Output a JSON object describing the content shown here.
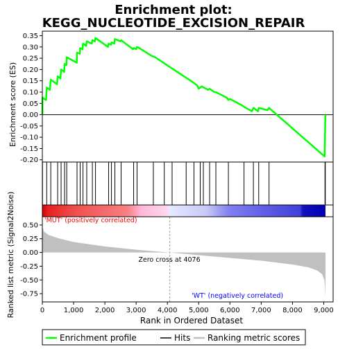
{
  "title_lines": [
    "Enrichment plot:",
    "KEGG_NUCLEOTIDE_EXCISION_REPAIR"
  ],
  "colors": {
    "es_line": "#00ff00",
    "hits": "#000000",
    "metric_fill": "#c0c0c0",
    "zero_cross_line": "#a0a0a0",
    "pos_label": "#ff0000",
    "neg_label": "#0000ff",
    "frame": "#000000",
    "legend_metric": "#c0c0c0"
  },
  "chart_data": [
    {
      "id": "es",
      "type": "line",
      "ylabel": "Enrichment score (ES)",
      "xlim": [
        0,
        9300
      ],
      "ylim": [
        -0.21,
        0.37
      ],
      "yticks": [
        0.35,
        0.3,
        0.25,
        0.2,
        0.15,
        0.1,
        0.05,
        0.0,
        -0.05,
        -0.1,
        -0.15,
        -0.2
      ],
      "ytick_labels": [
        "0.35",
        "0.30",
        "0.25",
        "0.20",
        "0.15",
        "0.10",
        "0.05",
        "0.00",
        "-0.05",
        "-0.10",
        "-0.15",
        "-0.20"
      ],
      "series": [
        {
          "name": "Enrichment profile",
          "points": [
            [
              0,
              0.0
            ],
            [
              5,
              0.075
            ],
            [
              120,
              0.065
            ],
            [
              140,
              0.12
            ],
            [
              240,
              0.11
            ],
            [
              270,
              0.155
            ],
            [
              470,
              0.135
            ],
            [
              490,
              0.17
            ],
            [
              580,
              0.16
            ],
            [
              600,
              0.2
            ],
            [
              700,
              0.19
            ],
            [
              710,
              0.225
            ],
            [
              770,
              0.22
            ],
            [
              780,
              0.255
            ],
            [
              1100,
              0.23
            ],
            [
              1110,
              0.275
            ],
            [
              1200,
              0.27
            ],
            [
              1210,
              0.295
            ],
            [
              1290,
              0.29
            ],
            [
              1300,
              0.315
            ],
            [
              1400,
              0.305
            ],
            [
              1420,
              0.325
            ],
            [
              1580,
              0.315
            ],
            [
              1600,
              0.33
            ],
            [
              1680,
              0.325
            ],
            [
              1700,
              0.34
            ],
            [
              2100,
              0.3
            ],
            [
              2120,
              0.315
            ],
            [
              2200,
              0.31
            ],
            [
              2210,
              0.32
            ],
            [
              2300,
              0.315
            ],
            [
              2320,
              0.335
            ],
            [
              2500,
              0.325
            ],
            [
              2520,
              0.33
            ],
            [
              2900,
              0.29
            ],
            [
              2920,
              0.295
            ],
            [
              3000,
              0.29
            ],
            [
              3030,
              0.3
            ],
            [
              3100,
              0.295
            ],
            [
              3500,
              0.26
            ],
            [
              3600,
              0.255
            ],
            [
              4200,
              0.2
            ],
            [
              4800,
              0.145
            ],
            [
              4950,
              0.13
            ],
            [
              5000,
              0.115
            ],
            [
              5050,
              0.12
            ],
            [
              5100,
              0.125
            ],
            [
              5300,
              0.11
            ],
            [
              5350,
              0.115
            ],
            [
              5500,
              0.1
            ],
            [
              5550,
              0.1
            ],
            [
              5900,
              0.075
            ],
            [
              5950,
              0.065
            ],
            [
              6000,
              0.07
            ],
            [
              6400,
              0.04
            ],
            [
              6450,
              0.035
            ],
            [
              6700,
              0.015
            ],
            [
              6750,
              0.03
            ],
            [
              6800,
              0.025
            ],
            [
              6900,
              0.015
            ],
            [
              6920,
              0.03
            ],
            [
              7200,
              0.02
            ],
            [
              7250,
              0.03
            ],
            [
              9030,
              -0.185
            ],
            [
              9040,
              -0.1
            ],
            [
              9050,
              -0.01
            ],
            [
              9055,
              0.0
            ]
          ]
        }
      ]
    },
    {
      "id": "hits",
      "type": "scatter",
      "series": [
        {
          "name": "Hits",
          "x": [
            5,
            140,
            270,
            490,
            600,
            710,
            780,
            1110,
            1210,
            1300,
            1420,
            1600,
            1700,
            2120,
            2210,
            2320,
            2520,
            2920,
            3030,
            3550,
            3900,
            4150,
            4600,
            4850,
            5050,
            5150,
            5350,
            5550,
            5950,
            6450,
            6750,
            6920,
            7250,
            9040,
            9050
          ]
        }
      ]
    },
    {
      "id": "metric",
      "type": "area",
      "xlabel": "Rank in Ordered Dataset",
      "ylabel": "Ranked list metric (Signal2Noise)",
      "xlim": [
        0,
        9300
      ],
      "ylim": [
        -0.9,
        0.65
      ],
      "yticks": [
        0.5,
        0.25,
        0.0,
        -0.25,
        -0.5,
        -0.75
      ],
      "ytick_labels": [
        "0.50",
        "0.25",
        "0.00",
        "-0.25",
        "-0.50",
        "-0.75"
      ],
      "xticks": [
        0,
        1000,
        2000,
        3000,
        4000,
        5000,
        6000,
        7000,
        8000,
        9000
      ],
      "xtick_labels": [
        "0",
        "1,000",
        "2,000",
        "3,000",
        "4,000",
        "5,000",
        "6,000",
        "7,000",
        "8,000",
        "9,000"
      ],
      "series": [
        {
          "name": "Ranking metric scores",
          "points": [
            [
              0,
              0.55
            ],
            [
              10,
              0.45
            ],
            [
              50,
              0.38
            ],
            [
              200,
              0.32
            ],
            [
              500,
              0.26
            ],
            [
              1000,
              0.19
            ],
            [
              2000,
              0.11
            ],
            [
              3000,
              0.05
            ],
            [
              4076,
              0.0
            ],
            [
              5000,
              -0.05
            ],
            [
              6000,
              -0.1
            ],
            [
              7000,
              -0.15
            ],
            [
              8000,
              -0.22
            ],
            [
              8500,
              -0.27
            ],
            [
              8800,
              -0.33
            ],
            [
              8950,
              -0.4
            ],
            [
              9020,
              -0.5
            ],
            [
              9040,
              -0.62
            ],
            [
              9055,
              -0.82
            ],
            [
              9055,
              0.0
            ]
          ]
        }
      ],
      "zero_cross": 4076,
      "zero_cross_label": "Zero cross at 4076",
      "pos_label": "'MUT' (positively correlated)",
      "neg_label": "'WT' (negatively correlated)"
    }
  ],
  "legend": [
    {
      "name": "Enrichment profile",
      "color": "#00ff00"
    },
    {
      "name": "Hits",
      "color": "#000000"
    },
    {
      "name": "Ranking metric scores",
      "color": "#c0c0c0"
    }
  ]
}
